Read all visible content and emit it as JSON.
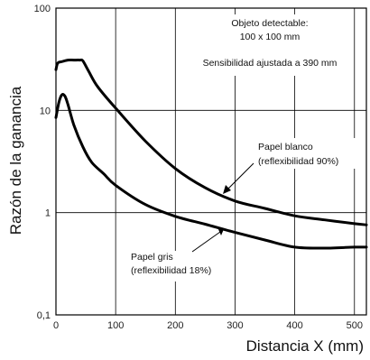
{
  "chart_data": {
    "type": "line",
    "xlabel": "Distancia X (mm)",
    "ylabel": "Razón de la ganancia",
    "xlim": [
      0,
      520
    ],
    "ylim": [
      0.1,
      100
    ],
    "yscale": "log",
    "grid": true,
    "xticks": [
      {
        "value": 0,
        "label": "0"
      },
      {
        "value": 100,
        "label": "100"
      },
      {
        "value": 200,
        "label": "200"
      },
      {
        "value": 300,
        "label": "300"
      },
      {
        "value": 400,
        "label": "400"
      },
      {
        "value": 500,
        "label": "500"
      }
    ],
    "yticks": [
      {
        "value": 0.1,
        "label": "0,1"
      },
      {
        "value": 1,
        "label": "1"
      },
      {
        "value": 10,
        "label": "10"
      },
      {
        "value": 100,
        "label": "100"
      }
    ],
    "annotations": {
      "object_line1": "Objeto detectable:",
      "object_line2": "100 x 100 mm",
      "sensitivity": "Sensibilidad ajustada a 390 mm"
    },
    "series": [
      {
        "name": "Papel blanco (reflexibilidad 90%)",
        "label_line1": "Papel blanco",
        "label_line2": "(reflexibilidad 90%)",
        "x": [
          0,
          3,
          10,
          20,
          30,
          40,
          45,
          55,
          70,
          100,
          150,
          200,
          250,
          300,
          350,
          400,
          450,
          500,
          520
        ],
        "y": [
          25,
          29,
          30,
          31,
          31,
          31,
          30.5,
          24,
          17,
          10.5,
          5,
          2.7,
          1.75,
          1.3,
          1.1,
          0.93,
          0.85,
          0.78,
          0.76
        ]
      },
      {
        "name": "Papel gris (reflexibilidad 18%)",
        "label_line1": "Papel gris",
        "label_line2": "(reflexibilidad 18%)",
        "x": [
          0,
          5,
          10,
          15,
          20,
          30,
          45,
          60,
          80,
          100,
          150,
          200,
          250,
          300,
          350,
          400,
          450,
          500,
          520
        ],
        "y": [
          8.5,
          12,
          14.2,
          13.8,
          11.5,
          7.2,
          4.4,
          3.1,
          2.4,
          1.85,
          1.2,
          0.92,
          0.77,
          0.64,
          0.54,
          0.46,
          0.45,
          0.46,
          0.46
        ]
      }
    ]
  }
}
